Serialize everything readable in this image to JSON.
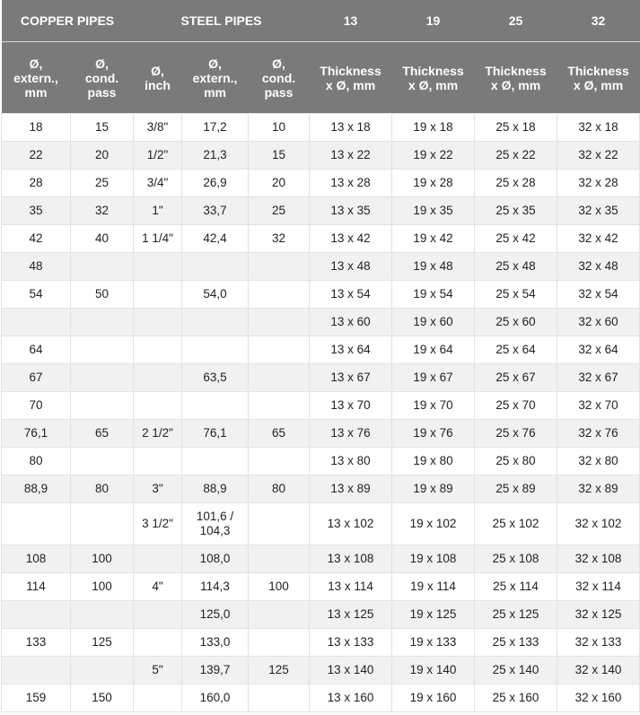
{
  "header": {
    "group_copper": "COPPER PIPES",
    "group_steel": "STEEL PIPES",
    "sizes": [
      "13",
      "19",
      "25",
      "32"
    ],
    "sub": [
      "Ø,\nextern.,\nmm",
      "Ø,\ncond.\npass",
      "Ø,\ninch",
      "Ø,\nextern.,\nmm",
      "Ø,\ncond.\npass",
      "Thickness\nx Ø, mm",
      "Thickness\nx Ø, mm",
      "Thickness\nx Ø, mm",
      "Thickness\nx Ø, mm"
    ]
  },
  "rows": [
    [
      "18",
      "15",
      "3/8\"",
      "17,2",
      "10",
      "13 x 18",
      "19 x 18",
      "25 x 18",
      "32 x 18"
    ],
    [
      "22",
      "20",
      "1/2\"",
      "21,3",
      "15",
      "13 x 22",
      "19 x 22",
      "25 x 22",
      "32 x 22"
    ],
    [
      "28",
      "25",
      "3/4\"",
      "26,9",
      "20",
      "13 x 28",
      "19 x 28",
      "25 x 28",
      "32 x 28"
    ],
    [
      "35",
      "32",
      "1\"",
      "33,7",
      "25",
      "13 x 35",
      "19 x 35",
      "25 x 35",
      "32 x 35"
    ],
    [
      "42",
      "40",
      "1 1/4\"",
      "42,4",
      "32",
      "13 x 42",
      "19 x 42",
      "25 x 42",
      "32 x 42"
    ],
    [
      "48",
      "",
      "",
      "",
      "",
      "13 x 48",
      "19 x 48",
      "25 x 48",
      "32 x 48"
    ],
    [
      "54",
      "50",
      "",
      "54,0",
      "",
      "13 x 54",
      "19 x 54",
      "25 x 54",
      "32 x 54"
    ],
    [
      "",
      "",
      "",
      "",
      "",
      "13 x 60",
      "19 x 60",
      "25 x 60",
      "32 x 60"
    ],
    [
      "64",
      "",
      "",
      "",
      "",
      "13 x 64",
      "19 x 64",
      "25 x 64",
      "32 x 64"
    ],
    [
      "67",
      "",
      "",
      "63,5",
      "",
      "13 x 67",
      "19 x 67",
      "25 x 67",
      "32 x 67"
    ],
    [
      "70",
      "",
      "",
      "",
      "",
      "13 x 70",
      "19 x 70",
      "25 x 70",
      "32 x 70"
    ],
    [
      "76,1",
      "65",
      "2 1/2\"",
      "76,1",
      "65",
      "13 x 76",
      "19 x 76",
      "25 x 76",
      "32 x 76"
    ],
    [
      "80",
      "",
      "",
      "",
      "",
      "13 x 80",
      "19 x 80",
      "25 x 80",
      "32 x 80"
    ],
    [
      "88,9",
      "80",
      "3\"",
      "88,9",
      "80",
      "13 x 89",
      "19 x 89",
      "25 x 89",
      "32 x 89"
    ],
    [
      "",
      "",
      "3 1/2\"",
      "101,6 /\n104,3",
      "",
      "13 x 102",
      "19 x 102",
      "25 x 102",
      "32 x 102"
    ],
    [
      "108",
      "100",
      "",
      "108,0",
      "",
      "13 x 108",
      "19 x 108",
      "25 x 108",
      "32 x 108"
    ],
    [
      "114",
      "100",
      "4\"",
      "114,3",
      "100",
      "13 x 114",
      "19 x 114",
      "25 x 114",
      "32 x 114"
    ],
    [
      "",
      "",
      "",
      "125,0",
      "",
      "13 x 125",
      "19 x 125",
      "25 x 125",
      "32 x 125"
    ],
    [
      "133",
      "125",
      "",
      "133,0",
      "",
      "13 x 133",
      "19 x 133",
      "25 x 133",
      "32 x 133"
    ],
    [
      "",
      "",
      "5\"",
      "139,7",
      "125",
      "13 x 140",
      "19 x 140",
      "25 x 140",
      "32 x 140"
    ],
    [
      "159",
      "150",
      "",
      "160,0",
      "",
      "13 x 160",
      "19 x 160",
      "25 x 160",
      "32 x 160"
    ]
  ]
}
